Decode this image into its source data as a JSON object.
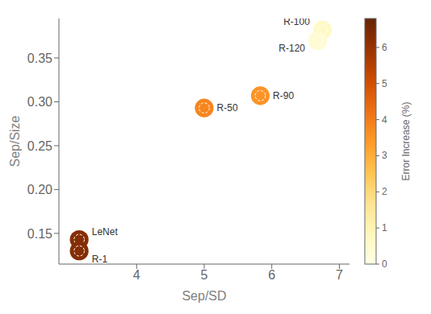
{
  "chart_data": {
    "type": "scatter",
    "xlabel": "Sep/SD",
    "ylabel": "Sep/Size",
    "points": [
      {
        "label": "LeNet",
        "x": 3.15,
        "y": 0.143,
        "error_increase": 6.3,
        "size": 280
      },
      {
        "label": "R-1",
        "x": 3.15,
        "y": 0.13,
        "error_increase": 6.3,
        "size": 280
      },
      {
        "label": "R-50",
        "x": 5.0,
        "y": 0.293,
        "error_increase": 3.8,
        "size": 280
      },
      {
        "label": "R-90",
        "x": 5.83,
        "y": 0.307,
        "error_increase": 3.5,
        "size": 280
      },
      {
        "label": "R-100",
        "x": 6.75,
        "y": 0.382,
        "error_increase": 0.6,
        "size": 280
      },
      {
        "label": "R-120",
        "x": 6.68,
        "y": 0.37,
        "error_increase": 0.4,
        "size": 280
      }
    ],
    "xlim": [
      2.85,
      7.15
    ],
    "xticks": [
      4,
      5,
      6,
      7
    ],
    "ylim": [
      0.115,
      0.395
    ],
    "yticks": [
      0.15,
      {
        "value": 0.2,
        "label": "0.20"
      },
      0.25,
      {
        "value": 0.3,
        "label": "0.30"
      },
      0.35
    ],
    "colorbar": {
      "label": "Error Increase (%)",
      "range": [
        0,
        6.8
      ],
      "ticks": [
        0,
        1,
        2,
        3,
        4,
        5,
        6
      ]
    },
    "grid": false
  }
}
